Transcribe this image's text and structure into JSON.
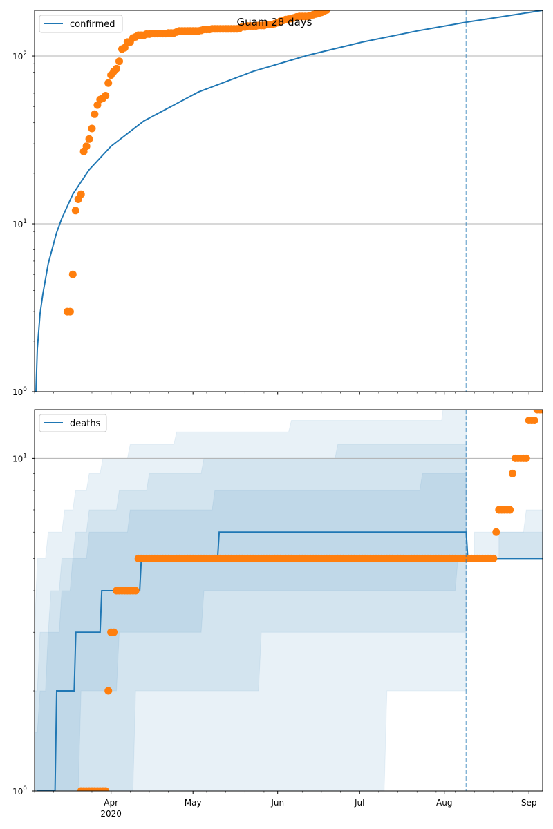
{
  "chart_data": [
    {
      "type": "line",
      "title": "Guam 28 days",
      "x_unit": "days since 2020-03-04",
      "xlim": [
        0,
        186
      ],
      "yscale": "log",
      "ylim": [
        1,
        187
      ],
      "grid": "horizontal major",
      "legend": {
        "placement": "top-left",
        "entries": [
          "confirmed"
        ]
      },
      "yticks": [
        {
          "base": "10",
          "exp": "0",
          "value": 1
        },
        {
          "base": "10",
          "exp": "1",
          "value": 10
        },
        {
          "base": "10",
          "exp": "2",
          "value": 100
        }
      ],
      "forecast_start_day": 158,
      "series": [
        {
          "name": "confirmed",
          "kind": "model-line",
          "color": "#1f77b4",
          "x": [
            0.5,
            1,
            2,
            3,
            5,
            8,
            10,
            14,
            20,
            28,
            40,
            60,
            80,
            100,
            120,
            140,
            158,
            186
          ],
          "y": [
            1,
            1.8,
            2.9,
            3.8,
            5.8,
            8.8,
            10.8,
            15,
            21,
            29,
            41,
            61,
            81,
            101,
            121,
            141,
            159,
            187
          ]
        },
        {
          "name": "observed confirmed",
          "kind": "scatter",
          "color": "#ff7f0e",
          "start_day": 12,
          "values": [
            3,
            3,
            5,
            12,
            14,
            15,
            27,
            29,
            32,
            37,
            45,
            51,
            55,
            56,
            58,
            69,
            77,
            81,
            84,
            93,
            110,
            112,
            121,
            121,
            128,
            130,
            133,
            133,
            133,
            135,
            135,
            136,
            136,
            136,
            136,
            136,
            136,
            137,
            137,
            137,
            139,
            141,
            141,
            141,
            141,
            141,
            141,
            141,
            141,
            142,
            144,
            144,
            144,
            145,
            145,
            145,
            145,
            145,
            145,
            145,
            145,
            145,
            145,
            146,
            149,
            149,
            151,
            151,
            151,
            151,
            152,
            152,
            152,
            154,
            154,
            154,
            156,
            158,
            161,
            163,
            165,
            166,
            167,
            169,
            171,
            172,
            172,
            172,
            172,
            174,
            176,
            178,
            180,
            182,
            185,
            188
          ]
        }
      ]
    },
    {
      "type": "line",
      "title": "",
      "x_unit": "days since 2020-03-04",
      "xlim": [
        0,
        186
      ],
      "yscale": "log",
      "ylim": [
        1,
        14
      ],
      "grid": "horizontal major",
      "legend": {
        "placement": "top-left",
        "entries": [
          "deaths"
        ]
      },
      "yticks": [
        {
          "base": "10",
          "exp": "0",
          "value": 1
        },
        {
          "base": "10",
          "exp": "1",
          "value": 10
        }
      ],
      "xticks": [
        {
          "label": "Apr",
          "sub": "2020",
          "day": 28
        },
        {
          "label": "May",
          "sub": "",
          "day": 58
        },
        {
          "label": "Jun",
          "sub": "",
          "day": 89
        },
        {
          "label": "Jul",
          "sub": "",
          "day": 119
        },
        {
          "label": "Aug",
          "sub": "",
          "day": 150
        },
        {
          "label": "Sep",
          "sub": "",
          "day": 181
        }
      ],
      "forecast_start_day": 158,
      "series": [
        {
          "name": "deaths",
          "kind": "model-step",
          "color": "#1f77b4",
          "end_day": 186,
          "steps": [
            [
              1,
              1
            ],
            [
              7.5,
              2
            ],
            [
              14.5,
              3
            ],
            [
              24,
              4
            ],
            [
              38.5,
              5
            ],
            [
              67,
              6
            ],
            [
              158,
              5
            ]
          ]
        },
        {
          "name": "observed deaths",
          "kind": "scatter",
          "color": "#ff7f0e",
          "runs": [
            [
              17,
              26,
              1
            ],
            [
              27,
              27,
              2
            ],
            [
              28,
              29,
              3
            ],
            [
              30,
              37,
              4
            ],
            [
              38,
              168,
              5
            ],
            [
              169,
              169,
              6
            ],
            [
              170,
              174,
              7
            ],
            [
              175,
              175,
              9
            ],
            [
              176,
              180,
              10
            ],
            [
              181,
              183,
              13
            ],
            [
              184,
              186,
              14
            ]
          ]
        }
      ],
      "bands": [
        {
          "name": "outer-interval",
          "start": 0,
          "end": 158,
          "lower": [
            [
              0,
              1
            ],
            [
              129,
              2
            ]
          ],
          "upper": [
            [
              0,
              3
            ],
            [
              1,
              5
            ],
            [
              5,
              6
            ],
            [
              11,
              7
            ],
            [
              15,
              8
            ],
            [
              20,
              9
            ],
            [
              25,
              10
            ],
            [
              35,
              11
            ],
            [
              52,
              12
            ],
            [
              94,
              13
            ],
            [
              150,
              15
            ]
          ]
        },
        {
          "name": "middle-interval",
          "start": 0,
          "end": 158,
          "lower": [
            [
              0,
              1
            ],
            [
              37,
              2
            ],
            [
              83,
              3
            ]
          ],
          "upper": [
            [
              0,
              2
            ],
            [
              2,
              3
            ],
            [
              6,
              4
            ],
            [
              10,
              5
            ],
            [
              15,
              6
            ],
            [
              20,
              7
            ],
            [
              31,
              8
            ],
            [
              42,
              9
            ],
            [
              62,
              10
            ],
            [
              111,
              11
            ]
          ]
        },
        {
          "name": "inner-interval",
          "start": 0,
          "end": 158,
          "lower": [
            [
              0,
              1
            ],
            [
              17,
              2
            ],
            [
              31,
              3
            ],
            [
              62,
              4
            ],
            [
              155,
              5
            ]
          ],
          "upper": [
            [
              0,
              1.5
            ],
            [
              2,
              2
            ],
            [
              5,
              3
            ],
            [
              10,
              4
            ],
            [
              14,
              5
            ],
            [
              20,
              6
            ],
            [
              35,
              7
            ],
            [
              66,
              8
            ],
            [
              142,
              9
            ]
          ]
        },
        {
          "name": "post-outer-interval",
          "start": 161,
          "end": 186,
          "lower": [
            [
              161,
              5
            ]
          ],
          "upper": [
            [
              161,
              6
            ],
            [
              180,
              7
            ]
          ]
        },
        {
          "name": "post-inner-interval",
          "start": 170,
          "end": 186,
          "lower": [
            [
              170,
              5
            ]
          ],
          "upper": [
            [
              170,
              6
            ]
          ]
        }
      ]
    }
  ]
}
